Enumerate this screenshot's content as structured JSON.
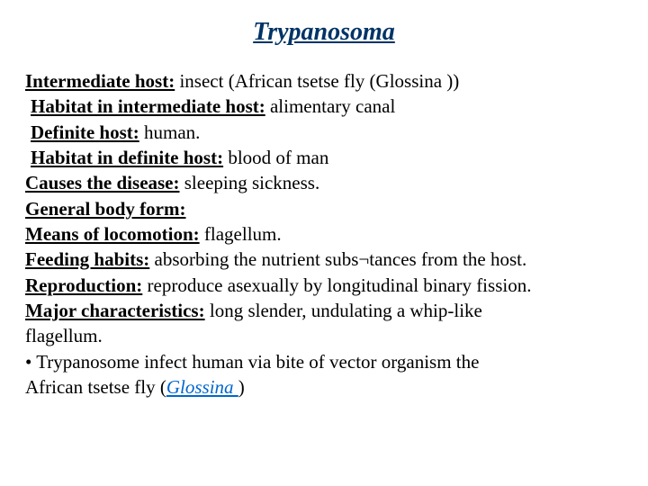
{
  "title": "Trypanosoma",
  "lines": [
    {
      "label": "Intermediate host:",
      "text": " insect (African tsetse fly (Glossina ))",
      "indent": false
    },
    {
      "label": "Habitat in intermediate host:",
      "text": " alimentary canal",
      "indent": true
    },
    {
      "label": "Definite host:",
      "text": " human.",
      "indent": true
    },
    {
      "label": "Habitat in definite host:",
      "text": " blood of  man",
      "indent": true
    },
    {
      "label": "Causes the disease:",
      "text": " sleeping sickness.",
      "indent": false
    },
    {
      "label": "General body form:",
      "text": "",
      "indent": false
    },
    {
      "label": "Means of locomotion:",
      "text": " flagellum.",
      "indent": false
    },
    {
      "label": "Feeding habits:",
      "text": " absorbing the nutrient subs¬tances from the host.",
      "indent": false
    },
    {
      "label": "Reproduction:",
      "text": "  reproduce asexually by longitudinal binary fission.",
      "indent": false
    },
    {
      "label": "Major characteristics:",
      "text": " long slender, undulating a whip-like",
      "indent": false
    }
  ],
  "tail1": "flagellum.",
  "bullet_prefix": "• Trypanosome infect human  via bite of vector organism the",
  "tail2_a": "African tsetse fly (",
  "tail2_link": "Glossina ",
  "tail2_b": ")"
}
